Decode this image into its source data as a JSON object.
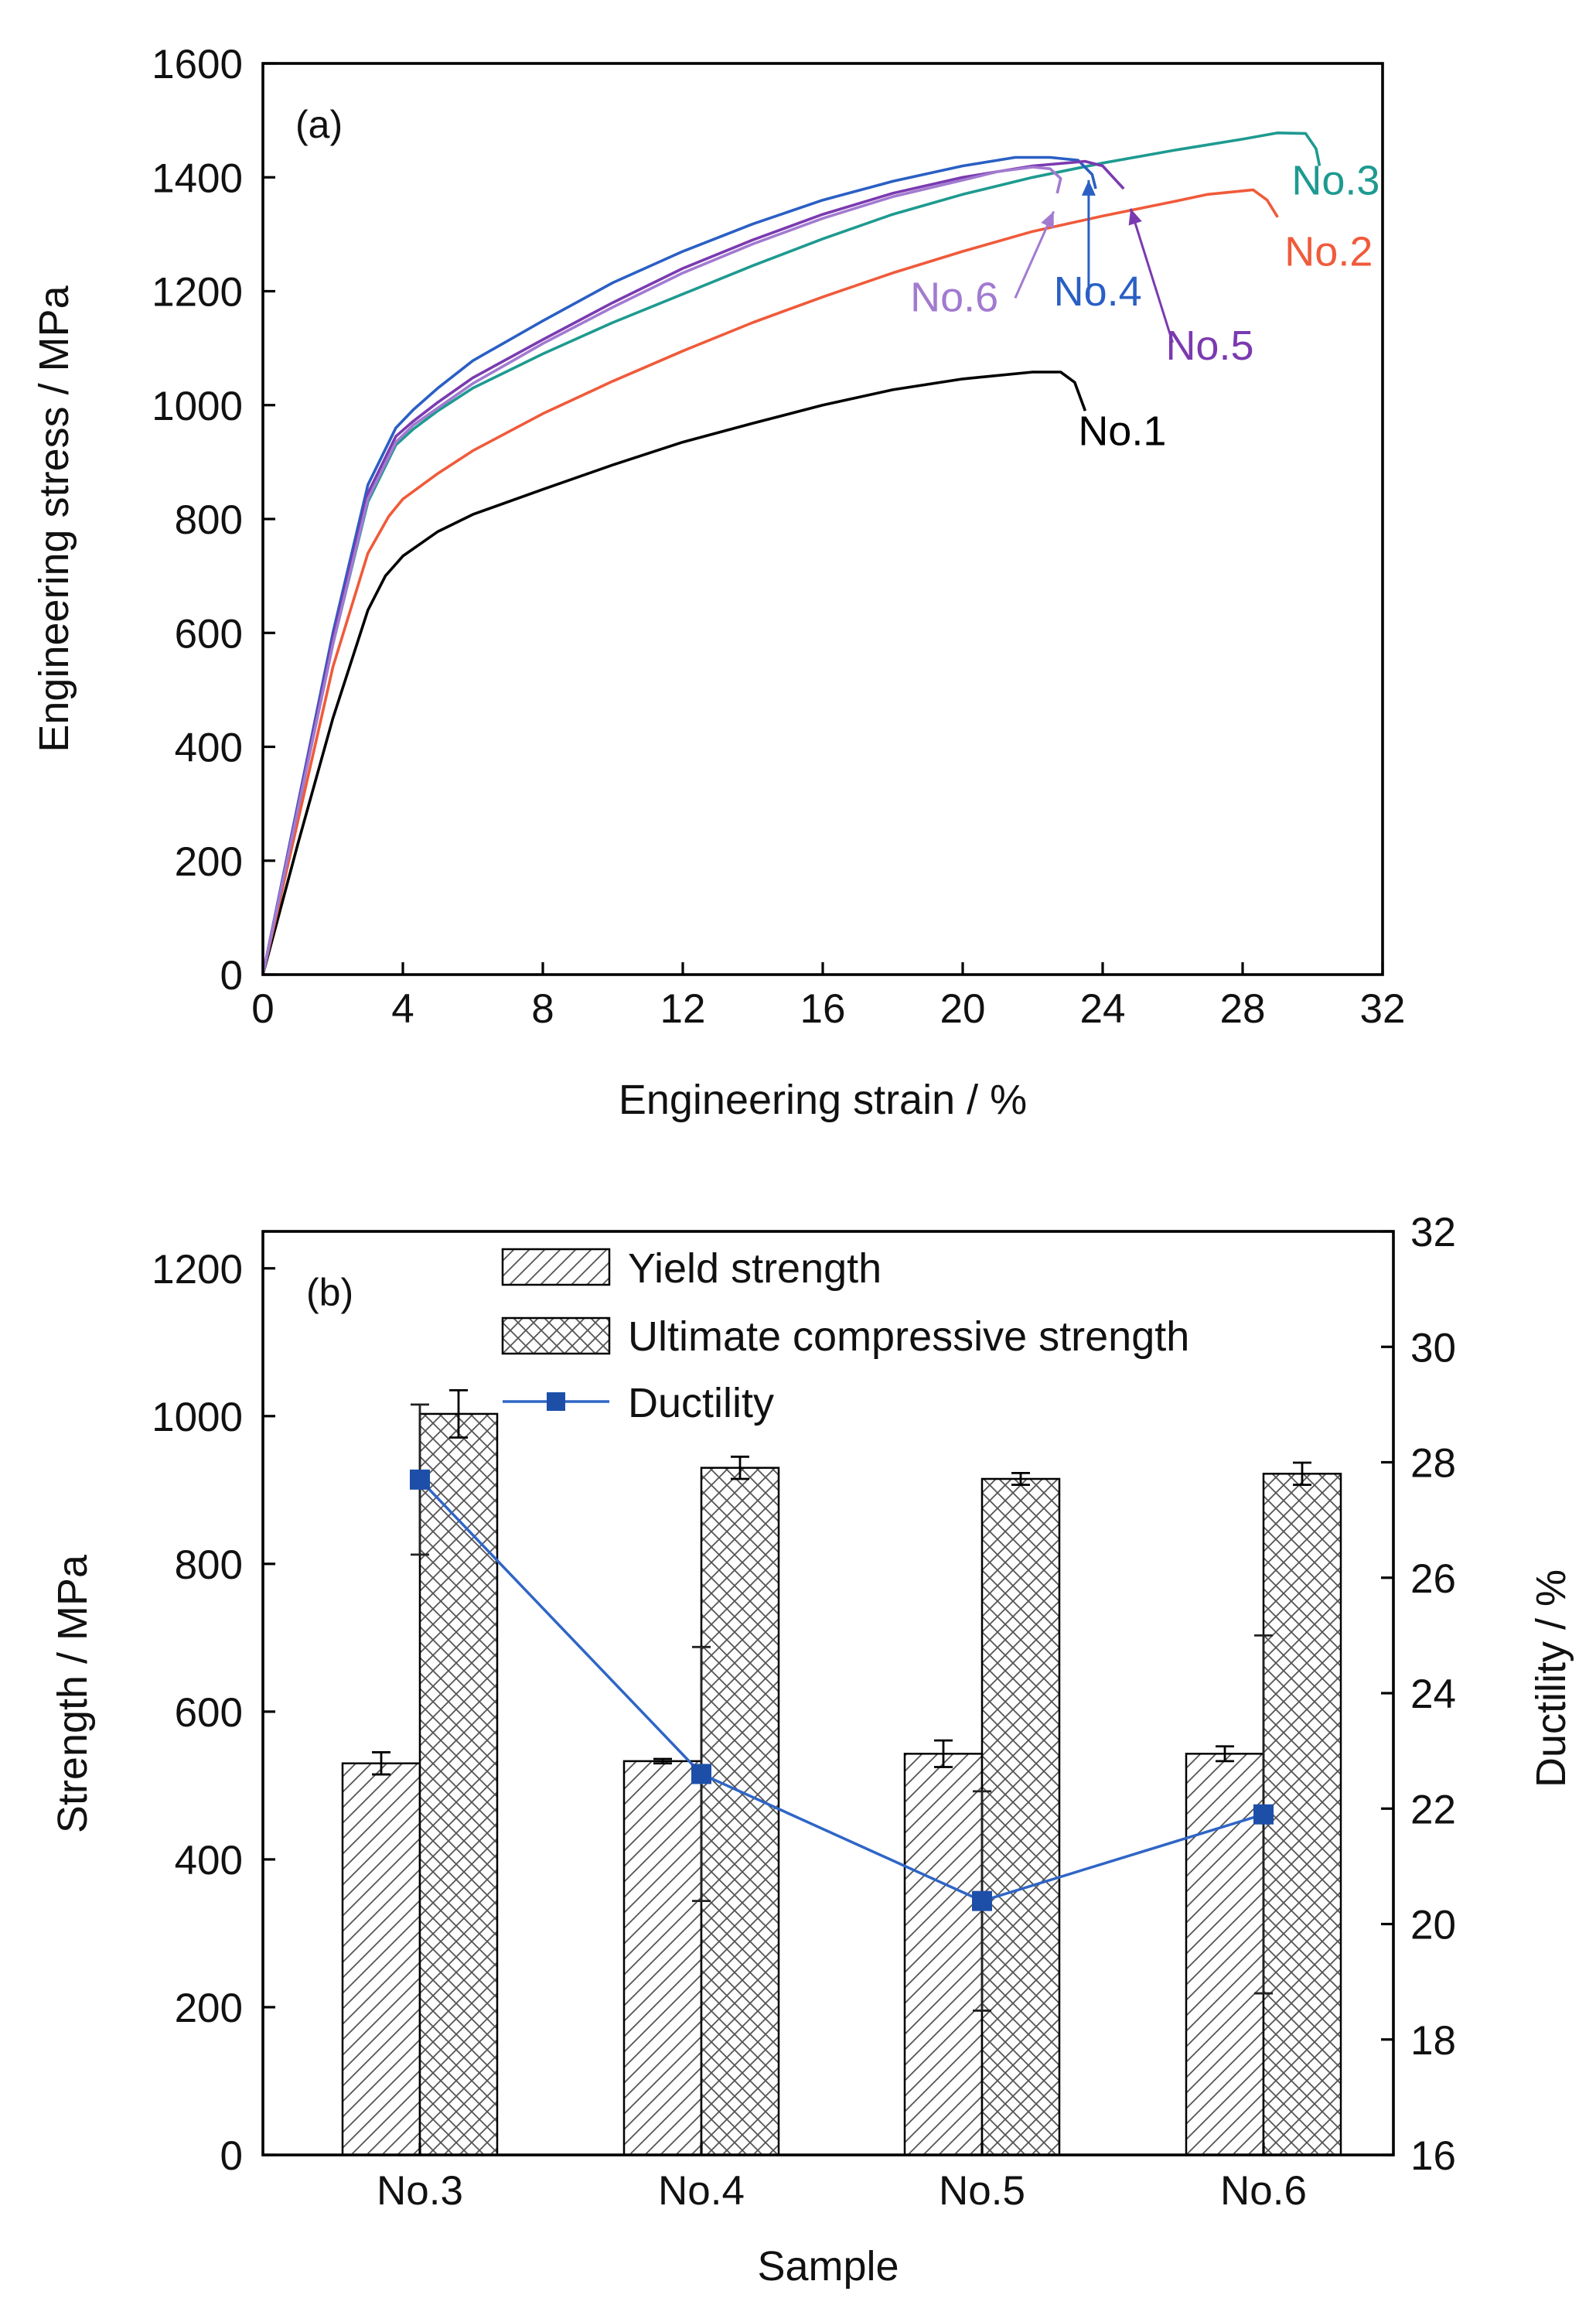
{
  "chart_data": [
    {
      "panel": "(a)",
      "type": "line",
      "xlabel": "Engineering strain / %",
      "ylabel": "Engineering stress / MPa",
      "xlim": [
        0,
        32
      ],
      "ylim": [
        0,
        1600
      ],
      "xticks": [
        0,
        4,
        8,
        12,
        16,
        20,
        24,
        28,
        32
      ],
      "yticks": [
        0,
        200,
        400,
        600,
        800,
        1000,
        1200,
        1400,
        1600
      ],
      "series": [
        {
          "name": "No.1",
          "color": "#000000",
          "points": [
            [
              0,
              0
            ],
            [
              1,
              230
            ],
            [
              2,
              450
            ],
            [
              3,
              640
            ],
            [
              3.5,
              700
            ],
            [
              4,
              735
            ],
            [
              5,
              778
            ],
            [
              6,
              808
            ],
            [
              8,
              852
            ],
            [
              10,
              895
            ],
            [
              12,
              935
            ],
            [
              14,
              968
            ],
            [
              16,
              1000
            ],
            [
              18,
              1027
            ],
            [
              20,
              1046
            ],
            [
              22,
              1058
            ],
            [
              22.8,
              1058
            ],
            [
              23.2,
              1040
            ],
            [
              23.5,
              990
            ]
          ],
          "callout": {
            "text": "No.1",
            "x": 23.3,
            "y": 930
          }
        },
        {
          "name": "No.2",
          "color": "#f05a3a",
          "points": [
            [
              0,
              0
            ],
            [
              1,
              270
            ],
            [
              2,
              540
            ],
            [
              3,
              740
            ],
            [
              3.6,
              805
            ],
            [
              4,
              835
            ],
            [
              5,
              880
            ],
            [
              6,
              920
            ],
            [
              8,
              985
            ],
            [
              10,
              1042
            ],
            [
              12,
              1095
            ],
            [
              14,
              1145
            ],
            [
              16,
              1190
            ],
            [
              18,
              1232
            ],
            [
              20,
              1270
            ],
            [
              22,
              1305
            ],
            [
              24,
              1332
            ],
            [
              26,
              1357
            ],
            [
              27,
              1370
            ],
            [
              28.3,
              1378
            ],
            [
              28.7,
              1360
            ],
            [
              29,
              1330
            ]
          ],
          "callout": {
            "text": "No.2",
            "x": 29.2,
            "y": 1245
          }
        },
        {
          "name": "No.3",
          "color": "#1e9a90",
          "points": [
            [
              0,
              0
            ],
            [
              1,
              290
            ],
            [
              2,
              580
            ],
            [
              3,
              830
            ],
            [
              3.8,
              930
            ],
            [
              4.3,
              958
            ],
            [
              5,
              990
            ],
            [
              6,
              1030
            ],
            [
              8,
              1090
            ],
            [
              10,
              1145
            ],
            [
              12,
              1195
            ],
            [
              14,
              1245
            ],
            [
              16,
              1292
            ],
            [
              18,
              1335
            ],
            [
              20,
              1370
            ],
            [
              22,
              1400
            ],
            [
              24,
              1425
            ],
            [
              26,
              1447
            ],
            [
              28,
              1467
            ],
            [
              29,
              1478
            ],
            [
              29.8,
              1477
            ],
            [
              30.1,
              1450
            ],
            [
              30.2,
              1420
            ]
          ],
          "callout": {
            "text": "No.3",
            "x": 29.4,
            "y": 1370
          }
        },
        {
          "name": "No.4",
          "color": "#2a5fc4",
          "points": [
            [
              0,
              0
            ],
            [
              1,
              300
            ],
            [
              2,
              600
            ],
            [
              3,
              860
            ],
            [
              3.8,
              960
            ],
            [
              4.3,
              992
            ],
            [
              5,
              1030
            ],
            [
              6,
              1078
            ],
            [
              8,
              1148
            ],
            [
              10,
              1215
            ],
            [
              12,
              1270
            ],
            [
              14,
              1318
            ],
            [
              16,
              1360
            ],
            [
              18,
              1393
            ],
            [
              20,
              1420
            ],
            [
              21.5,
              1435
            ],
            [
              22.5,
              1435
            ],
            [
              23.3,
              1430
            ],
            [
              23.7,
              1405
            ],
            [
              23.8,
              1380
            ]
          ],
          "callout": {
            "text": "No.4",
            "x": 22.6,
            "y": 1175
          }
        },
        {
          "name": "No.5",
          "color": "#7a3ab0",
          "points": [
            [
              0,
              0
            ],
            [
              1,
              295
            ],
            [
              2,
              590
            ],
            [
              3,
              845
            ],
            [
              3.8,
              945
            ],
            [
              4.3,
              972
            ],
            [
              5,
              1005
            ],
            [
              6,
              1048
            ],
            [
              8,
              1115
            ],
            [
              10,
              1180
            ],
            [
              12,
              1240
            ],
            [
              14,
              1290
            ],
            [
              16,
              1335
            ],
            [
              18,
              1372
            ],
            [
              20,
              1400
            ],
            [
              22,
              1420
            ],
            [
              23.5,
              1428
            ],
            [
              24,
              1420
            ],
            [
              24.3,
              1400
            ],
            [
              24.6,
              1380
            ]
          ],
          "callout": {
            "text": "No.5",
            "x": 25.8,
            "y": 1080
          }
        },
        {
          "name": "No.6",
          "color": "#a27ad0",
          "points": [
            [
              0,
              0
            ],
            [
              1,
              290
            ],
            [
              2,
              580
            ],
            [
              3,
              835
            ],
            [
              3.8,
              935
            ],
            [
              4.3,
              965
            ],
            [
              5,
              995
            ],
            [
              6,
              1038
            ],
            [
              8,
              1108
            ],
            [
              10,
              1172
            ],
            [
              12,
              1232
            ],
            [
              14,
              1283
            ],
            [
              16,
              1328
            ],
            [
              18,
              1366
            ],
            [
              20,
              1395
            ],
            [
              21,
              1410
            ],
            [
              22,
              1418
            ],
            [
              22.5,
              1415
            ],
            [
              22.8,
              1398
            ],
            [
              22.7,
              1372
            ]
          ],
          "callout": {
            "text": "No.6",
            "x": 18.5,
            "y": 1165
          }
        }
      ]
    },
    {
      "panel": "(b)",
      "type": "bar",
      "xlabel": "Sample",
      "ylabel": "Strength / MPa",
      "y2label": "Ductility / %",
      "categories": [
        "No.3",
        "No.4",
        "No.5",
        "No.6"
      ],
      "ylim": [
        0,
        1250
      ],
      "yticks": [
        0,
        200,
        400,
        600,
        800,
        1000,
        1200
      ],
      "y2lim": [
        16,
        32
      ],
      "y2ticks": [
        16,
        18,
        20,
        22,
        24,
        26,
        28,
        30,
        32
      ],
      "series": [
        {
          "name": "Yield strength",
          "pattern": "hatch",
          "values": [
            530,
            533,
            543,
            543
          ],
          "errors": [
            15,
            3,
            18,
            10
          ]
        },
        {
          "name": "Ultimate compressive strength",
          "pattern": "crosshatch",
          "values": [
            1003,
            930,
            915,
            922
          ],
          "errors": [
            32,
            15,
            8,
            15
          ]
        },
        {
          "name": "Ductility",
          "axis": "right",
          "color": "#2f65c6",
          "values": [
            27.7,
            22.6,
            20.4,
            21.9
          ],
          "errors": [
            1.3,
            2.2,
            1.9,
            3.1
          ]
        }
      ],
      "legend": [
        "Yield strength",
        "Ultimate compressive strength",
        "Ductility"
      ]
    }
  ]
}
